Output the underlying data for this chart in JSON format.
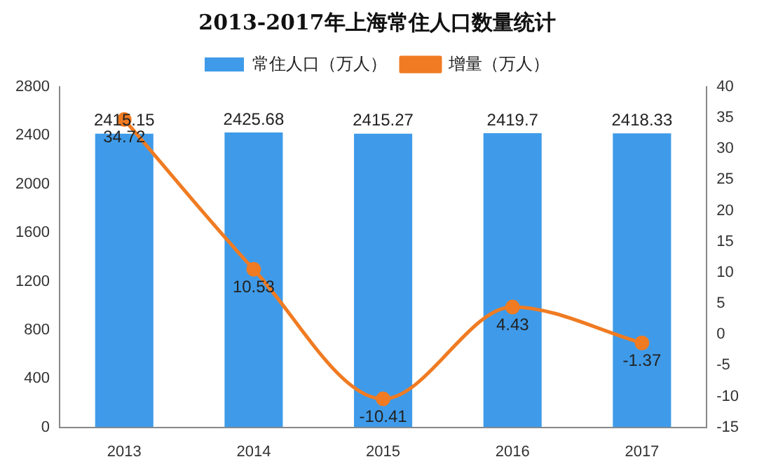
{
  "chart_data": {
    "type": "bar",
    "title": "2013-2017年上海常住人口数量统计",
    "categories": [
      "2013",
      "2014",
      "2015",
      "2016",
      "2017"
    ],
    "series": [
      {
        "name": "常住人口（万人）",
        "color": "#3f9be9",
        "values": [
          2415.15,
          2425.68,
          2415.27,
          2419.7,
          2418.33
        ]
      },
      {
        "name": "增量（万人）",
        "type": "line",
        "axis": "y2",
        "color": "#f07b22",
        "values": [
          34.72,
          10.53,
          -10.41,
          4.43,
          -1.37
        ]
      }
    ],
    "ylim": [
      0,
      2800
    ],
    "yticks": [
      0,
      400,
      800,
      1200,
      1600,
      2000,
      2400,
      2800
    ],
    "y2lim": [
      -15,
      40
    ],
    "y2ticks": [
      -15,
      -10,
      -5,
      0,
      5,
      10,
      15,
      20,
      25,
      30,
      35,
      40
    ],
    "legend": "top",
    "grid": false,
    "marker": "circle",
    "data_labels": true
  }
}
